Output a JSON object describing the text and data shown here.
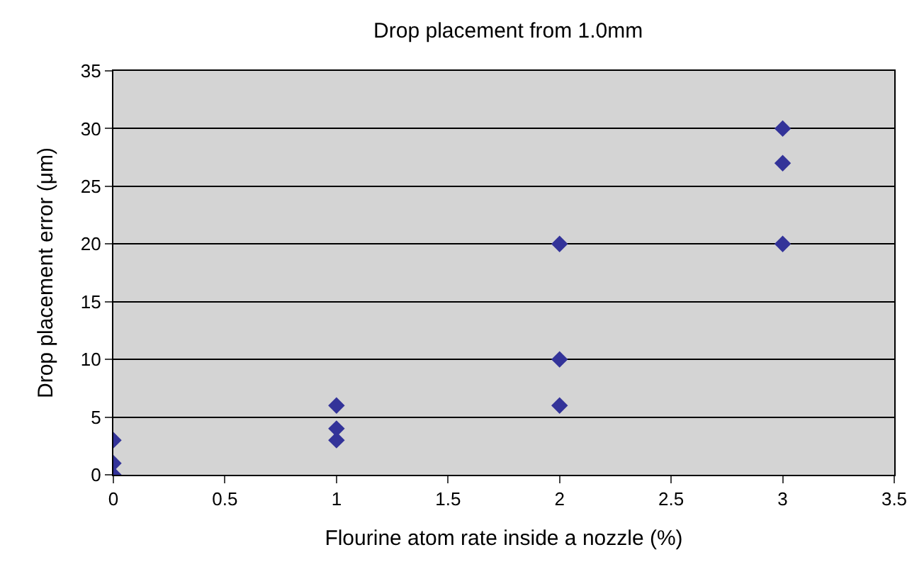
{
  "chart_data": {
    "type": "scatter",
    "title": "Drop placement from 1.0mm",
    "xlabel": "Flourine atom rate inside a nozzle (%)",
    "ylabel": "Drop placement error (μm)",
    "x": [
      0,
      0,
      0,
      1,
      1,
      1,
      2,
      2,
      2,
      3,
      3,
      3
    ],
    "values": [
      0,
      1,
      3,
      3,
      4,
      6,
      6,
      10,
      20,
      20,
      27,
      30
    ],
    "color": "#333399",
    "marker": "diamond",
    "xlim": [
      0,
      3.5
    ],
    "xticks": [
      0,
      0.5,
      1,
      1.5,
      2,
      2.5,
      3,
      3.5
    ],
    "ylim": [
      0,
      35
    ],
    "yticks": [
      0,
      5,
      10,
      15,
      20,
      25,
      30,
      35
    ],
    "grid": "y"
  }
}
